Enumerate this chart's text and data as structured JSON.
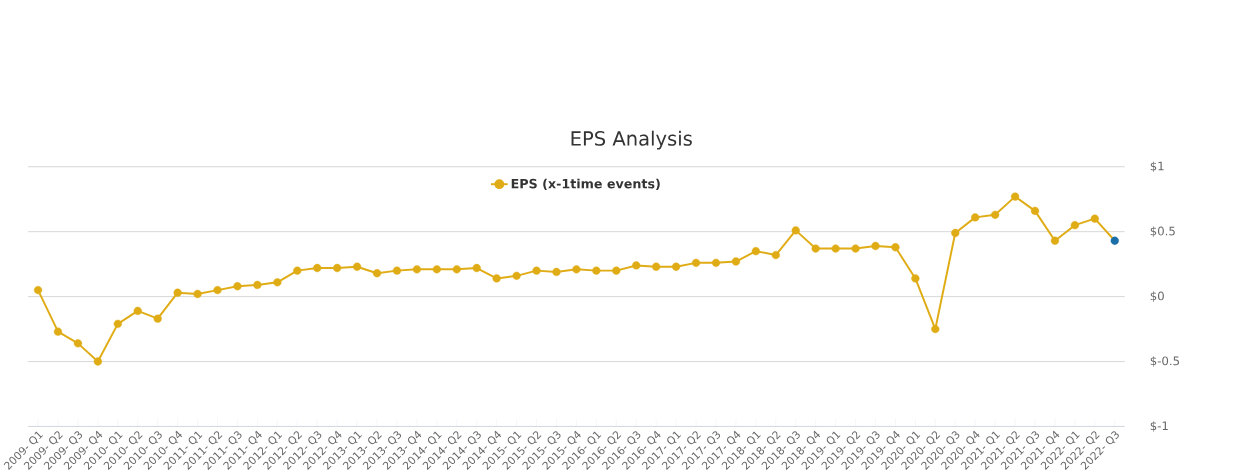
{
  "chart_data": {
    "type": "line",
    "title": "EPS Analysis",
    "categories": [
      "2009- Q1",
      "2009- Q2",
      "2009- Q3",
      "2009- Q4",
      "2010- Q1",
      "2010- Q2",
      "2010- Q3",
      "2010- Q4",
      "2011- Q1",
      "2011- Q2",
      "2011- Q3",
      "2011- Q4",
      "2012- Q1",
      "2012- Q2",
      "2012- Q3",
      "2012- Q4",
      "2013- Q1",
      "2013- Q2",
      "2013- Q3",
      "2013- Q4",
      "2014- Q1",
      "2014- Q2",
      "2014- Q3",
      "2014- Q4",
      "2015- Q1",
      "2015- Q2",
      "2015- Q3",
      "2015- Q4",
      "2016- Q1",
      "2016- Q2",
      "2016- Q3",
      "2016- Q4",
      "2017- Q1",
      "2017- Q2",
      "2017- Q3",
      "2017- Q4",
      "2018- Q1",
      "2018- Q2",
      "2018- Q3",
      "2018- Q4",
      "2019- Q1",
      "2019- Q2",
      "2019- Q3",
      "2019- Q4",
      "2020- Q1",
      "2020- Q2",
      "2020- Q3",
      "2020- Q4",
      "2021- Q1",
      "2021- Q2",
      "2021- Q3",
      "2021- Q4",
      "2022- Q1",
      "2022- Q2",
      "2022- Q3"
    ],
    "series": [
      {
        "name": "EPS (x-1time events)",
        "color": "#e0ac16",
        "values": [
          0.05,
          -0.27,
          -0.36,
          -0.5,
          -0.21,
          -0.11,
          -0.17,
          0.03,
          0.02,
          0.05,
          0.08,
          0.09,
          0.11,
          0.2,
          0.22,
          0.22,
          0.23,
          0.18,
          0.2,
          0.21,
          0.21,
          0.21,
          0.22,
          0.14,
          0.16,
          0.2,
          0.19,
          0.21,
          0.2,
          0.2,
          0.24,
          0.23,
          0.23,
          0.26,
          0.26,
          0.27,
          0.35,
          0.32,
          0.51,
          0.37,
          0.37,
          0.37,
          0.39,
          0.38,
          0.14,
          -0.25,
          0.49,
          0.61,
          0.63,
          0.77,
          0.66,
          0.43,
          0.55,
          0.6,
          0.43
        ],
        "colors": [
          "#e0ac16",
          "#e0ac16",
          "#e0ac16",
          "#e0ac16",
          "#e0ac16",
          "#e0ac16",
          "#e0ac16",
          "#e0ac16",
          "#e0ac16",
          "#e0ac16",
          "#e0ac16",
          "#e0ac16",
          "#e0ac16",
          "#e0ac16",
          "#e0ac16",
          "#e0ac16",
          "#e0ac16",
          "#e0ac16",
          "#e0ac16",
          "#e0ac16",
          "#e0ac16",
          "#e0ac16",
          "#e0ac16",
          "#e0ac16",
          "#e0ac16",
          "#e0ac16",
          "#e0ac16",
          "#e0ac16",
          "#e0ac16",
          "#e0ac16",
          "#e0ac16",
          "#e0ac16",
          "#e0ac16",
          "#e0ac16",
          "#e0ac16",
          "#e0ac16",
          "#e0ac16",
          "#e0ac16",
          "#e0ac16",
          "#e0ac16",
          "#e0ac16",
          "#e0ac16",
          "#e0ac16",
          "#e0ac16",
          "#e0ac16",
          "#e0ac16",
          "#e0ac16",
          "#e0ac16",
          "#e0ac16",
          "#e0ac16",
          "#e0ac16",
          "#e0ac16",
          "#e0ac16",
          "#e0ac16",
          "#1a6fa8"
        ]
      }
    ],
    "ylim": [
      -1,
      1
    ],
    "yticks": [
      {
        "value": 1,
        "label": "$1"
      },
      {
        "value": 0.5,
        "label": "$0.5"
      },
      {
        "value": 0,
        "label": "$0"
      },
      {
        "value": -0.5,
        "label": "$-0.5"
      },
      {
        "value": -1,
        "label": "$-1"
      }
    ],
    "grid": "y",
    "legend": "top",
    "marker": "circle",
    "line_style": "solid"
  }
}
